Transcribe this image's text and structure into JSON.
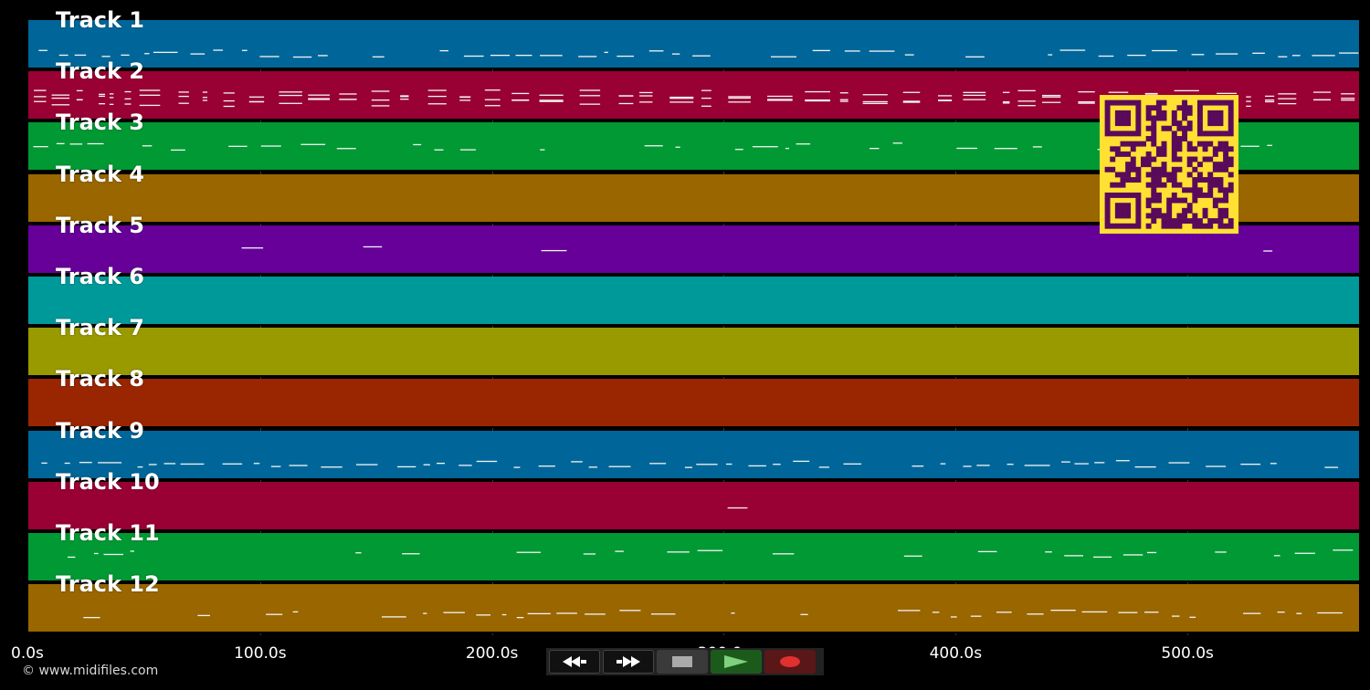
{
  "tracks": [
    {
      "label": "Track 1",
      "color": "#006699"
    },
    {
      "label": "Track 2",
      "color": "#990033"
    },
    {
      "label": "Track 3",
      "color": "#009933"
    },
    {
      "label": "Track 4",
      "color": "#996600"
    },
    {
      "label": "Track 5",
      "color": "#660099"
    },
    {
      "label": "Track 6",
      "color": "#009999"
    },
    {
      "label": "Track 7",
      "color": "#999900"
    },
    {
      "label": "Track 8",
      "color": "#992600"
    },
    {
      "label": "Track 9",
      "color": "#006699"
    },
    {
      "label": "Track 10",
      "color": "#990033"
    },
    {
      "label": "Track 11",
      "color": "#009933"
    },
    {
      "label": "Track 12",
      "color": "#996600"
    }
  ],
  "timeline": {
    "ticks": [
      "0.0s",
      "100.0s",
      "200.0s",
      "300.0s",
      "400.0s",
      "500.0s"
    ],
    "tick_seconds": [
      0,
      100,
      200,
      300,
      400,
      500
    ],
    "end_seconds": 574
  },
  "footer": {
    "copyright": "© www.midifiles.com"
  },
  "transport": {
    "buttons": [
      {
        "name": "rewind-button",
        "icon": "rewind-icon"
      },
      {
        "name": "fast-forward-button",
        "icon": "fast-forward-icon"
      },
      {
        "name": "stop-button",
        "icon": "stop-icon"
      },
      {
        "name": "play-button",
        "icon": "play-icon"
      },
      {
        "name": "record-button",
        "icon": "record-icon"
      }
    ]
  },
  "qr": {
    "fg": "#5a0a5a",
    "bg": "#ffe033"
  }
}
